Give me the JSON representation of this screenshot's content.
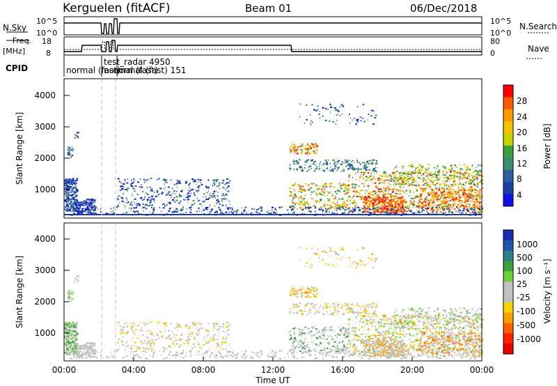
{
  "header": {
    "station": "Kerguelen (fitACF)",
    "beam": "Beam 01",
    "date": "06/Dec/2018"
  },
  "strips": {
    "nsky_label": "N.Sky",
    "nsky_ticks": [
      "10^5",
      "10^0"
    ],
    "nsearch_label": "N.Search",
    "nsearch_ticks": [
      "10^5",
      "10^0"
    ],
    "freq_label_line1": "Freq.",
    "freq_label_line2": "[MHz]",
    "freq_ticks": [
      "18",
      "8"
    ],
    "nave_label": "Nave",
    "nave_ticks": [
      "80",
      "0"
    ],
    "cpid_label": "CPID",
    "cpid_annotations": [
      "normal (fast)",
      "test_radar 4950",
      "normal (fast) 151"
    ],
    "cpid_overlap_text": "normal (fast)"
  },
  "colorbars": {
    "power": {
      "title": "Power [dB]",
      "ticks": [
        "28",
        "24",
        "20",
        "16",
        "12",
        "8",
        "4"
      ],
      "colors": [
        "#ff0000",
        "#ff5a00",
        "#ff9b00",
        "#f2c400",
        "#c8d400",
        "#3aa040",
        "#3b8f6f",
        "#2e5f9e",
        "#1b3fa0",
        "#1010e8"
      ]
    },
    "velocity": {
      "title": "Velocity [m s⁻¹]",
      "ticks": [
        "1000",
        "500",
        "100",
        "25",
        "-25",
        "-100",
        "-500",
        "-1000"
      ],
      "colors": [
        "#1d2bb5",
        "#2256a8",
        "#2e7e8a",
        "#3aa040",
        "#6fcf3a",
        "#c0c0c0",
        "#c0c0c0",
        "#f7d300",
        "#ffa000",
        "#ff6000",
        "#ff2000",
        "#ee0000"
      ]
    }
  },
  "chart_data": [
    {
      "type": "heatmap",
      "title": "Power",
      "ylabel": "Slant Range [km]",
      "xlabel": "Time UT",
      "x_ticks": [
        "00:00",
        "04:00",
        "08:00",
        "12:00",
        "16:00",
        "20:00",
        "00:00"
      ],
      "y_ticks": [
        "4000",
        "3000",
        "2000",
        "1000"
      ],
      "xlim": [
        0,
        24
      ],
      "ylim": [
        180,
        4600
      ],
      "colorbar_label": "Power [dB]",
      "colorbar_ticks": [
        28,
        24,
        20,
        16,
        12,
        8,
        4
      ]
    },
    {
      "type": "heatmap",
      "title": "Velocity",
      "ylabel": "Slant Range [km]",
      "xlabel": "Time UT",
      "x_ticks": [
        "00:00",
        "04:00",
        "08:00",
        "12:00",
        "16:00",
        "20:00",
        "00:00"
      ],
      "y_ticks": [
        "4000",
        "3000",
        "2000",
        "1000"
      ],
      "xlim": [
        0,
        24
      ],
      "ylim": [
        180,
        4600
      ],
      "colorbar_label": "Velocity [m s⁻¹]",
      "colorbar_ticks": [
        1000,
        500,
        100,
        25,
        -25,
        -100,
        -500,
        -1000
      ]
    }
  ],
  "axis": {
    "time_label": "Time UT"
  }
}
